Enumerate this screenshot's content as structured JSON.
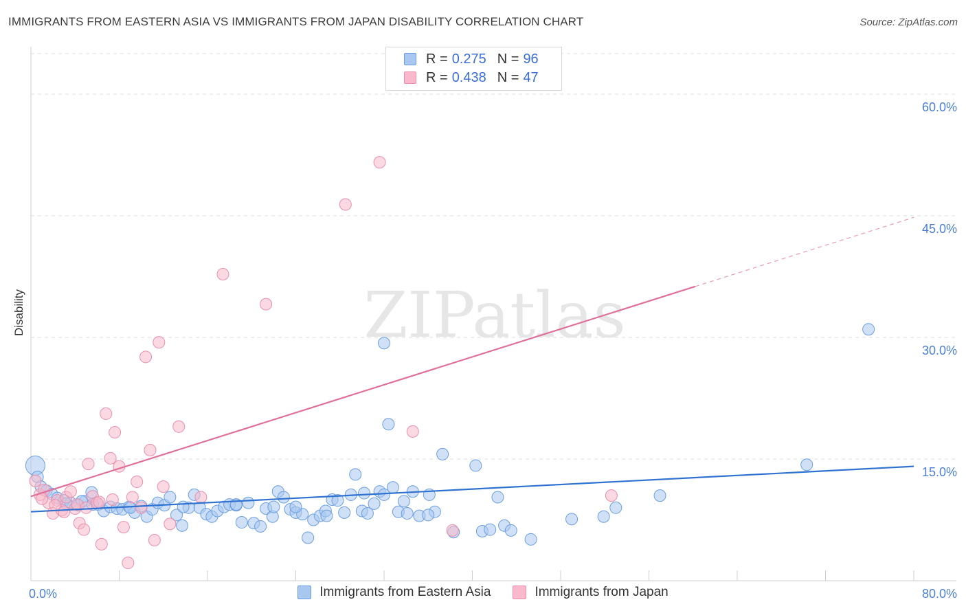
{
  "title": "IMMIGRANTS FROM EASTERN ASIA VS IMMIGRANTS FROM JAPAN DISABILITY CORRELATION CHART",
  "source": "Source: ZipAtlas.com",
  "watermark": "ZIPatlas",
  "colors": {
    "blue_fill": "#a9c8f0",
    "blue_stroke": "#6b9ee0",
    "blue_line": "#2f72d1",
    "pink_fill": "#f7b9cb",
    "pink_stroke": "#e98fae",
    "pink_line": "#e0709a",
    "tick_label": "#4a7fd4",
    "grid": "#dddddd"
  },
  "legend_top": [
    {
      "series": "blue",
      "r_label": "R =",
      "r_value": "0.275",
      "n_label": "N =",
      "n_value": "96"
    },
    {
      "series": "pink",
      "r_label": "R =",
      "r_value": "0.438",
      "n_label": "N =",
      "n_value": "47"
    }
  ],
  "legend_bottom": [
    {
      "series": "blue",
      "label": "Immigrants from Eastern Asia"
    },
    {
      "series": "pink",
      "label": "Immigrants from Japan"
    }
  ],
  "chart_data": {
    "type": "scatter",
    "title": "IMMIGRANTS FROM EASTERN ASIA VS IMMIGRANTS FROM JAPAN DISABILITY CORRELATION CHART",
    "xlabel": "",
    "ylabel": "Disability",
    "xlim": [
      0,
      80
    ],
    "ylim": [
      0,
      65
    ],
    "x_tick_labels": [
      {
        "value": 0,
        "label": "0.0%"
      },
      {
        "value": 80,
        "label": "80.0%"
      }
    ],
    "y_tick_labels": [
      {
        "value": 15,
        "label": "15.0%"
      },
      {
        "value": 30,
        "label": "30.0%"
      },
      {
        "value": 45,
        "label": "45.0%"
      },
      {
        "value": 60,
        "label": "60.0%"
      }
    ],
    "x_minor_ticks": [
      8,
      16,
      24,
      32,
      40,
      48,
      56,
      64,
      72,
      80
    ],
    "series": [
      {
        "name": "Immigrants from Eastern Asia",
        "key": "blue",
        "r": 0.275,
        "n": 96,
        "trend": {
          "x0": 0,
          "y0": 8.5,
          "x1": 80,
          "y1": 14.1,
          "solid_until": 80
        },
        "points": [
          [
            0.4,
            14.2,
            1
          ],
          [
            0.6,
            12.8,
            1
          ],
          [
            0.9,
            11.6,
            1
          ],
          [
            1.4,
            11.1,
            1
          ],
          [
            1.9,
            10.7,
            1
          ],
          [
            2.4,
            10.2,
            1
          ],
          [
            3.0,
            9.9,
            1
          ],
          [
            3.6,
            9.6,
            1
          ],
          [
            4.3,
            9.3,
            1
          ],
          [
            4.9,
            9.8,
            1
          ],
          [
            5.5,
            10.9,
            1
          ],
          [
            6.1,
            9.4,
            1
          ],
          [
            6.6,
            8.6,
            1
          ],
          [
            7.2,
            9.1,
            1
          ],
          [
            7.8,
            8.9,
            1
          ],
          [
            8.3,
            8.8,
            1
          ],
          [
            8.9,
            9.1,
            1
          ],
          [
            9.4,
            8.4,
            1
          ],
          [
            10.0,
            9.2,
            1
          ],
          [
            10.5,
            7.9,
            1
          ],
          [
            11.0,
            8.8,
            1
          ],
          [
            11.5,
            9.6,
            1
          ],
          [
            12.1,
            9.3,
            1
          ],
          [
            12.6,
            10.3,
            1
          ],
          [
            13.2,
            8.1,
            1
          ],
          [
            13.7,
            6.8,
            1
          ],
          [
            14.3,
            9.0,
            1
          ],
          [
            14.8,
            10.6,
            1
          ],
          [
            15.3,
            9.0,
            1
          ],
          [
            15.9,
            8.2,
            1
          ],
          [
            16.4,
            7.9,
            1
          ],
          [
            16.9,
            8.6,
            1
          ],
          [
            17.5,
            9.1,
            1
          ],
          [
            18.0,
            9.4,
            1
          ],
          [
            18.6,
            9.3,
            1
          ],
          [
            19.1,
            7.2,
            1
          ],
          [
            19.7,
            9.6,
            1
          ],
          [
            20.2,
            7.1,
            1
          ],
          [
            20.8,
            6.7,
            1
          ],
          [
            21.3,
            8.9,
            1
          ],
          [
            21.9,
            7.9,
            1
          ],
          [
            22.4,
            11.0,
            1
          ],
          [
            22.9,
            10.3,
            1
          ],
          [
            23.5,
            8.8,
            1
          ],
          [
            24.0,
            8.4,
            1
          ],
          [
            24.6,
            8.2,
            1
          ],
          [
            25.1,
            5.3,
            1
          ],
          [
            25.6,
            7.5,
            1
          ],
          [
            26.2,
            8.0,
            1
          ],
          [
            26.7,
            8.6,
            1
          ],
          [
            27.3,
            10.0,
            1
          ],
          [
            27.8,
            9.9,
            1
          ],
          [
            28.4,
            8.4,
            1
          ],
          [
            29.0,
            10.6,
            1
          ],
          [
            29.4,
            13.1,
            1
          ],
          [
            30.0,
            8.6,
            1
          ],
          [
            30.5,
            8.3,
            1
          ],
          [
            31.1,
            9.5,
            1
          ],
          [
            31.6,
            11.0,
            1
          ],
          [
            32.0,
            10.6,
            1
          ],
          [
            32.4,
            19.3,
            1
          ],
          [
            32.8,
            11.5,
            1
          ],
          [
            33.3,
            8.5,
            1
          ],
          [
            33.8,
            9.8,
            1
          ],
          [
            34.1,
            8.3,
            1
          ],
          [
            34.6,
            11.0,
            1
          ],
          [
            35.2,
            8.0,
            1
          ],
          [
            36.1,
            10.6,
            1
          ],
          [
            36.6,
            8.5,
            1
          ],
          [
            32.0,
            29.3,
            1
          ],
          [
            37.3,
            15.6,
            1
          ],
          [
            38.3,
            6.0,
            1
          ],
          [
            40.3,
            14.2,
            1
          ],
          [
            40.9,
            6.1,
            1
          ],
          [
            41.6,
            6.3,
            1
          ],
          [
            42.3,
            10.3,
            1
          ],
          [
            42.9,
            6.8,
            1
          ],
          [
            43.5,
            6.2,
            1
          ],
          [
            45.3,
            5.1,
            1
          ],
          [
            49.0,
            7.6,
            1
          ],
          [
            51.9,
            7.9,
            1
          ],
          [
            53.0,
            9.0,
            1
          ],
          [
            57.0,
            10.5,
            1
          ],
          [
            70.3,
            14.3,
            1
          ],
          [
            75.9,
            31.0,
            1
          ],
          [
            5.6,
            9.4,
            1
          ],
          [
            3.2,
            9.5,
            1
          ],
          [
            4.6,
            9.8,
            1
          ],
          [
            9.0,
            9.0,
            1
          ],
          [
            13.8,
            9.1,
            1
          ],
          [
            18.6,
            9.4,
            1
          ],
          [
            22.0,
            9.1,
            1
          ],
          [
            26.8,
            8.0,
            1
          ],
          [
            30.2,
            10.8,
            1
          ],
          [
            36.0,
            8.1,
            1
          ],
          [
            24.0,
            9.1,
            1
          ]
        ]
      },
      {
        "name": "Immigrants from Japan",
        "key": "pink",
        "r": 0.438,
        "n": 47,
        "trend": {
          "x0": 0,
          "y0": 10.4,
          "x1": 80,
          "y1": 44.8,
          "solid_until": 60.2
        },
        "points": [
          [
            0.4,
            12.3,
            1
          ],
          [
            0.8,
            10.6,
            1
          ],
          [
            1.2,
            11.2,
            1
          ],
          [
            1.6,
            9.6,
            1
          ],
          [
            2.0,
            8.3,
            1
          ],
          [
            2.4,
            9.9,
            1
          ],
          [
            2.8,
            8.7,
            1
          ],
          [
            3.2,
            10.3,
            1
          ],
          [
            3.6,
            11.0,
            1
          ],
          [
            4.0,
            8.9,
            1
          ],
          [
            4.4,
            7.1,
            1
          ],
          [
            4.8,
            6.3,
            1
          ],
          [
            5.2,
            14.4,
            1
          ],
          [
            5.6,
            10.4,
            1
          ],
          [
            6.0,
            9.6,
            1
          ],
          [
            6.4,
            4.5,
            1
          ],
          [
            6.8,
            20.6,
            1
          ],
          [
            7.2,
            15.1,
            1
          ],
          [
            7.6,
            18.3,
            1
          ],
          [
            8.0,
            14.1,
            1
          ],
          [
            8.4,
            6.6,
            1
          ],
          [
            8.8,
            2.2,
            1
          ],
          [
            9.2,
            10.3,
            1
          ],
          [
            9.6,
            12.2,
            1
          ],
          [
            10.0,
            9.0,
            1
          ],
          [
            10.4,
            27.6,
            1
          ],
          [
            10.8,
            16.1,
            1
          ],
          [
            11.2,
            5.0,
            1
          ],
          [
            11.6,
            29.4,
            1
          ],
          [
            12.0,
            11.6,
            1
          ],
          [
            12.6,
            7.0,
            1
          ],
          [
            13.4,
            19.0,
            1
          ],
          [
            15.4,
            10.3,
            1
          ],
          [
            17.4,
            37.8,
            1
          ],
          [
            21.3,
            34.1,
            1
          ],
          [
            28.5,
            46.4,
            1
          ],
          [
            31.6,
            51.6,
            1
          ],
          [
            34.6,
            18.4,
            1
          ],
          [
            38.2,
            6.2,
            1
          ],
          [
            52.6,
            10.5,
            1
          ],
          [
            1.0,
            10.1,
            1
          ],
          [
            2.2,
            9.3,
            1
          ],
          [
            3.0,
            8.5,
            1
          ],
          [
            4.2,
            9.4,
            1
          ],
          [
            5.0,
            9.0,
            1
          ],
          [
            6.2,
            9.7,
            1
          ],
          [
            7.4,
            10.0,
            1
          ]
        ]
      }
    ]
  }
}
